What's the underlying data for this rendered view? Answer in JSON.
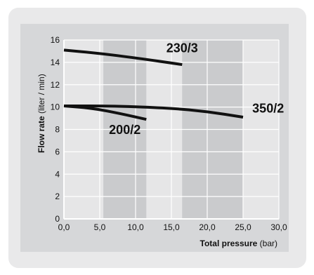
{
  "chart_data": {
    "type": "line",
    "xlabel_bold": "Total pressure",
    "xlabel_unit": " (bar)",
    "ylabel_bold": "Flow rate",
    "ylabel_unit": " (liter / min)",
    "x_ticks": [
      "0,0",
      "5,0",
      "10,0",
      "15,0",
      "20,0",
      "25,0",
      "30,0"
    ],
    "y_ticks": [
      "0",
      "2",
      "4",
      "6",
      "8",
      "10",
      "12",
      "14",
      "16"
    ],
    "xlim": [
      0,
      30
    ],
    "ylim": [
      0,
      16
    ],
    "grid": true,
    "bands": [
      {
        "from": 5.5,
        "to": 11.5
      },
      {
        "from": 16.5,
        "to": 25.0
      }
    ],
    "series": [
      {
        "name": "230/3",
        "points": [
          [
            0,
            15.1
          ],
          [
            5,
            14.8
          ],
          [
            10,
            14.4
          ],
          [
            16.5,
            13.8
          ]
        ],
        "label_at": [
          16.5,
          14.9
        ]
      },
      {
        "name": "350/2",
        "points": [
          [
            0,
            10.1
          ],
          [
            7,
            10.1
          ],
          [
            15,
            9.9
          ],
          [
            20,
            9.6
          ],
          [
            25,
            9.1
          ]
        ],
        "label_at": [
          28.5,
          9.5
        ]
      },
      {
        "name": "200/2",
        "points": [
          [
            0,
            10.1
          ],
          [
            4,
            9.9
          ],
          [
            8,
            9.4
          ],
          [
            11.5,
            8.9
          ]
        ],
        "label_at": [
          8.5,
          7.6
        ]
      }
    ]
  }
}
